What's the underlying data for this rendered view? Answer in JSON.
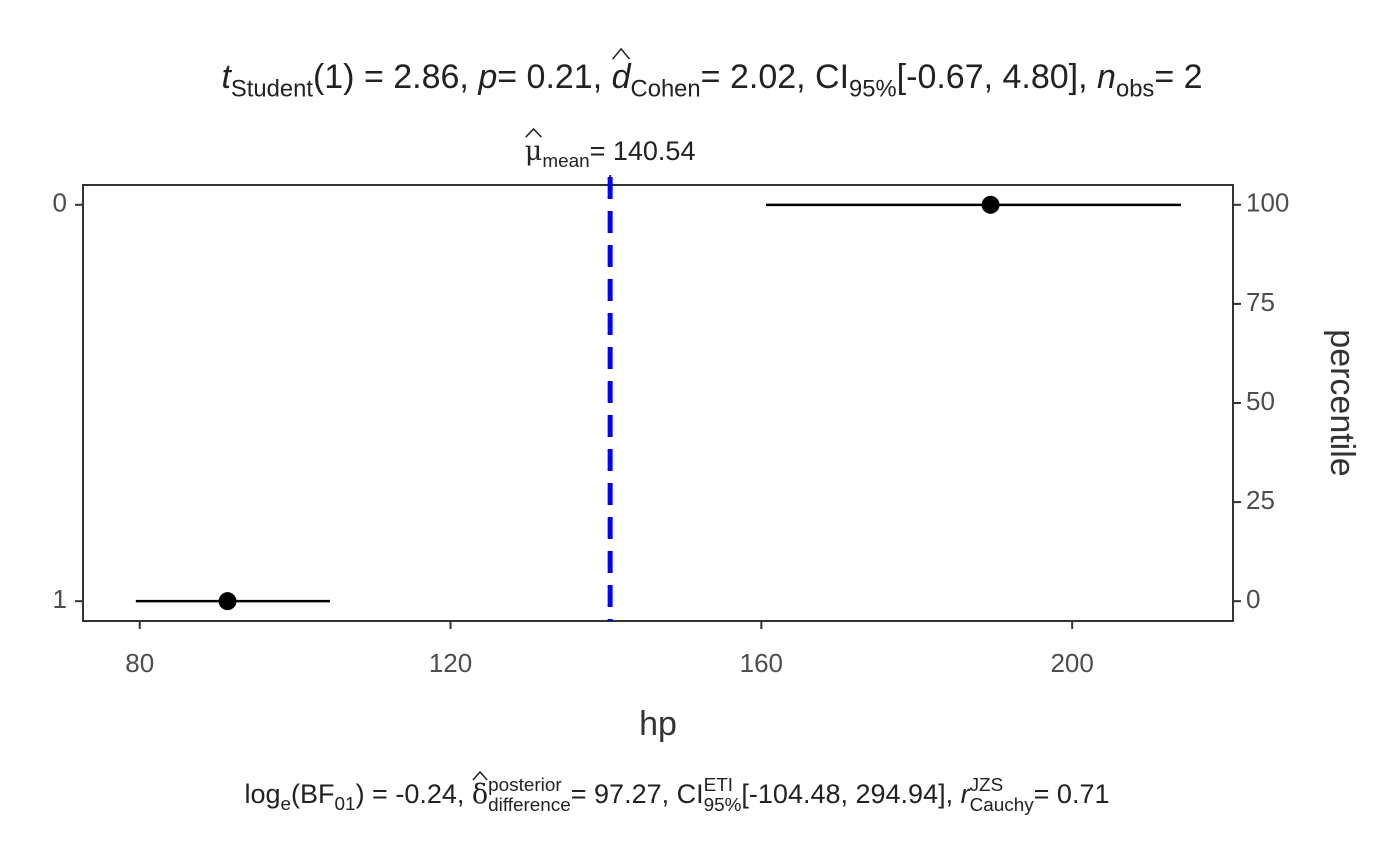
{
  "chart_data": {
    "type": "pointrange",
    "title": [
      "t",
      "Student",
      "(1) = 2.86, ",
      "p",
      " = 0.21, ",
      "d",
      "Cohen",
      " = 2.02, CI",
      "95%",
      " [-0.67, 4.80], ",
      "n",
      "obs",
      " = 2"
    ],
    "caption": [
      "log",
      "e",
      "(BF",
      "01",
      ") = -0.24, ",
      "δ",
      "posterior",
      "difference",
      " = 97.27, CI",
      "ETI",
      "95%",
      " [-104.48, 294.94], ",
      "r",
      "JZS",
      "Cauchy",
      " = 0.71"
    ],
    "x_label": "hp",
    "y2_label": "percentile",
    "categories": [
      "0",
      "1"
    ],
    "values": [
      189.5,
      91.3
    ],
    "xmin": [
      160.6,
      79.5
    ],
    "xmax": [
      214.0,
      104.5
    ],
    "percentiles": [
      100,
      0
    ],
    "color": "#000000",
    "mean_line": {
      "value": 140.54,
      "color": "#0000ff",
      "label": [
        "μ",
        "mean",
        " = 140.54"
      ]
    },
    "xlim": [
      72.7,
      220.7
    ],
    "xticks": [
      80,
      120,
      160,
      200
    ],
    "y2lim": [
      -5,
      105
    ],
    "y2ticks": [
      0,
      25,
      50,
      75,
      100
    ]
  }
}
